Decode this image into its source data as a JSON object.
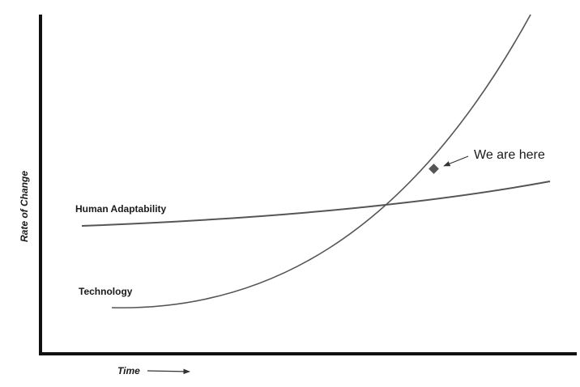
{
  "axes": {
    "y_label": "Rate of Change",
    "x_label": "Time"
  },
  "curves": [
    {
      "label": "Human Adaptability"
    },
    {
      "label": "Technology"
    }
  ],
  "annotation": "We are here"
}
